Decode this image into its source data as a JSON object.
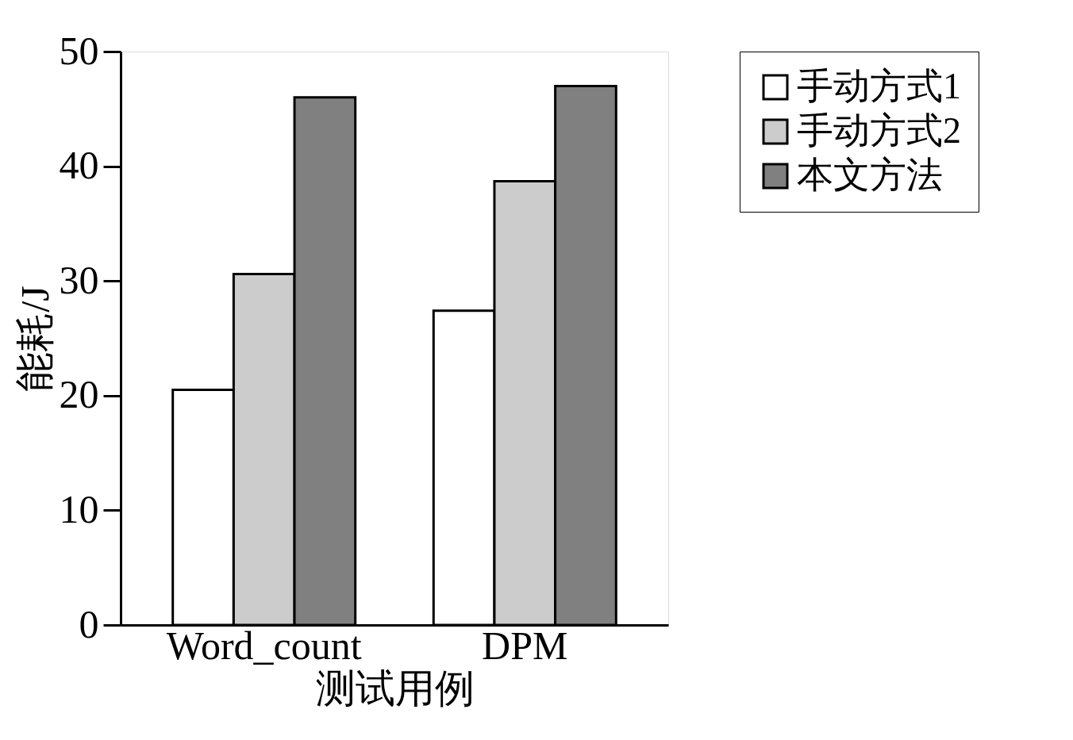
{
  "chart_data": {
    "type": "bar",
    "xlabel": "测试用例",
    "ylabel": "能耗/J",
    "categories": [
      "Word_count",
      "DPM"
    ],
    "series": [
      {
        "name": "手动方式1",
        "color": "#ffffff",
        "values": [
          20.5,
          27.4
        ]
      },
      {
        "name": "手动方式2",
        "color": "#cccccc",
        "values": [
          30.6,
          38.7
        ]
      },
      {
        "name": "本文方法",
        "color": "#808080",
        "values": [
          46.0,
          47.0
        ]
      }
    ],
    "ylim": [
      0,
      50
    ],
    "yticks": [
      0,
      10,
      20,
      30,
      40,
      50
    ],
    "grid": false,
    "legend": "right"
  }
}
